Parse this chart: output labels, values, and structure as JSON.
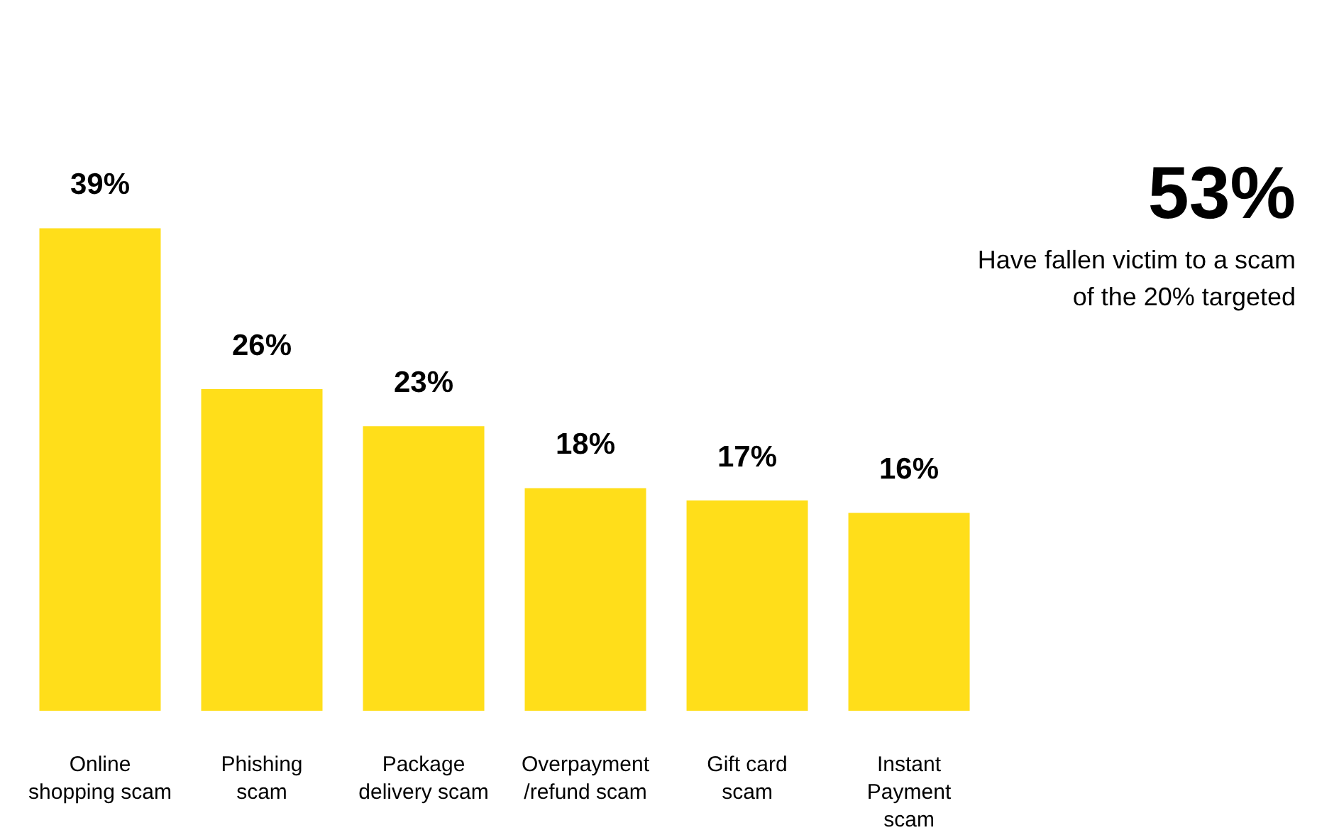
{
  "chart_data": {
    "type": "bar",
    "categories": [
      "Online\nshopping scam",
      "Phishing\nscam",
      "Package\ndelivery scam",
      "Overpayment\n/refund scam",
      "Gift card\nscam",
      "Instant\nPayment\nscam"
    ],
    "values": [
      39,
      26,
      23,
      18,
      17,
      16
    ],
    "value_labels": [
      "39%",
      "26%",
      "23%",
      "18%",
      "17%",
      "16%"
    ],
    "color": "#ffde1a",
    "annotations": [
      "53%",
      "Have fallen victim to a scam\nof the 20% targeted"
    ]
  }
}
